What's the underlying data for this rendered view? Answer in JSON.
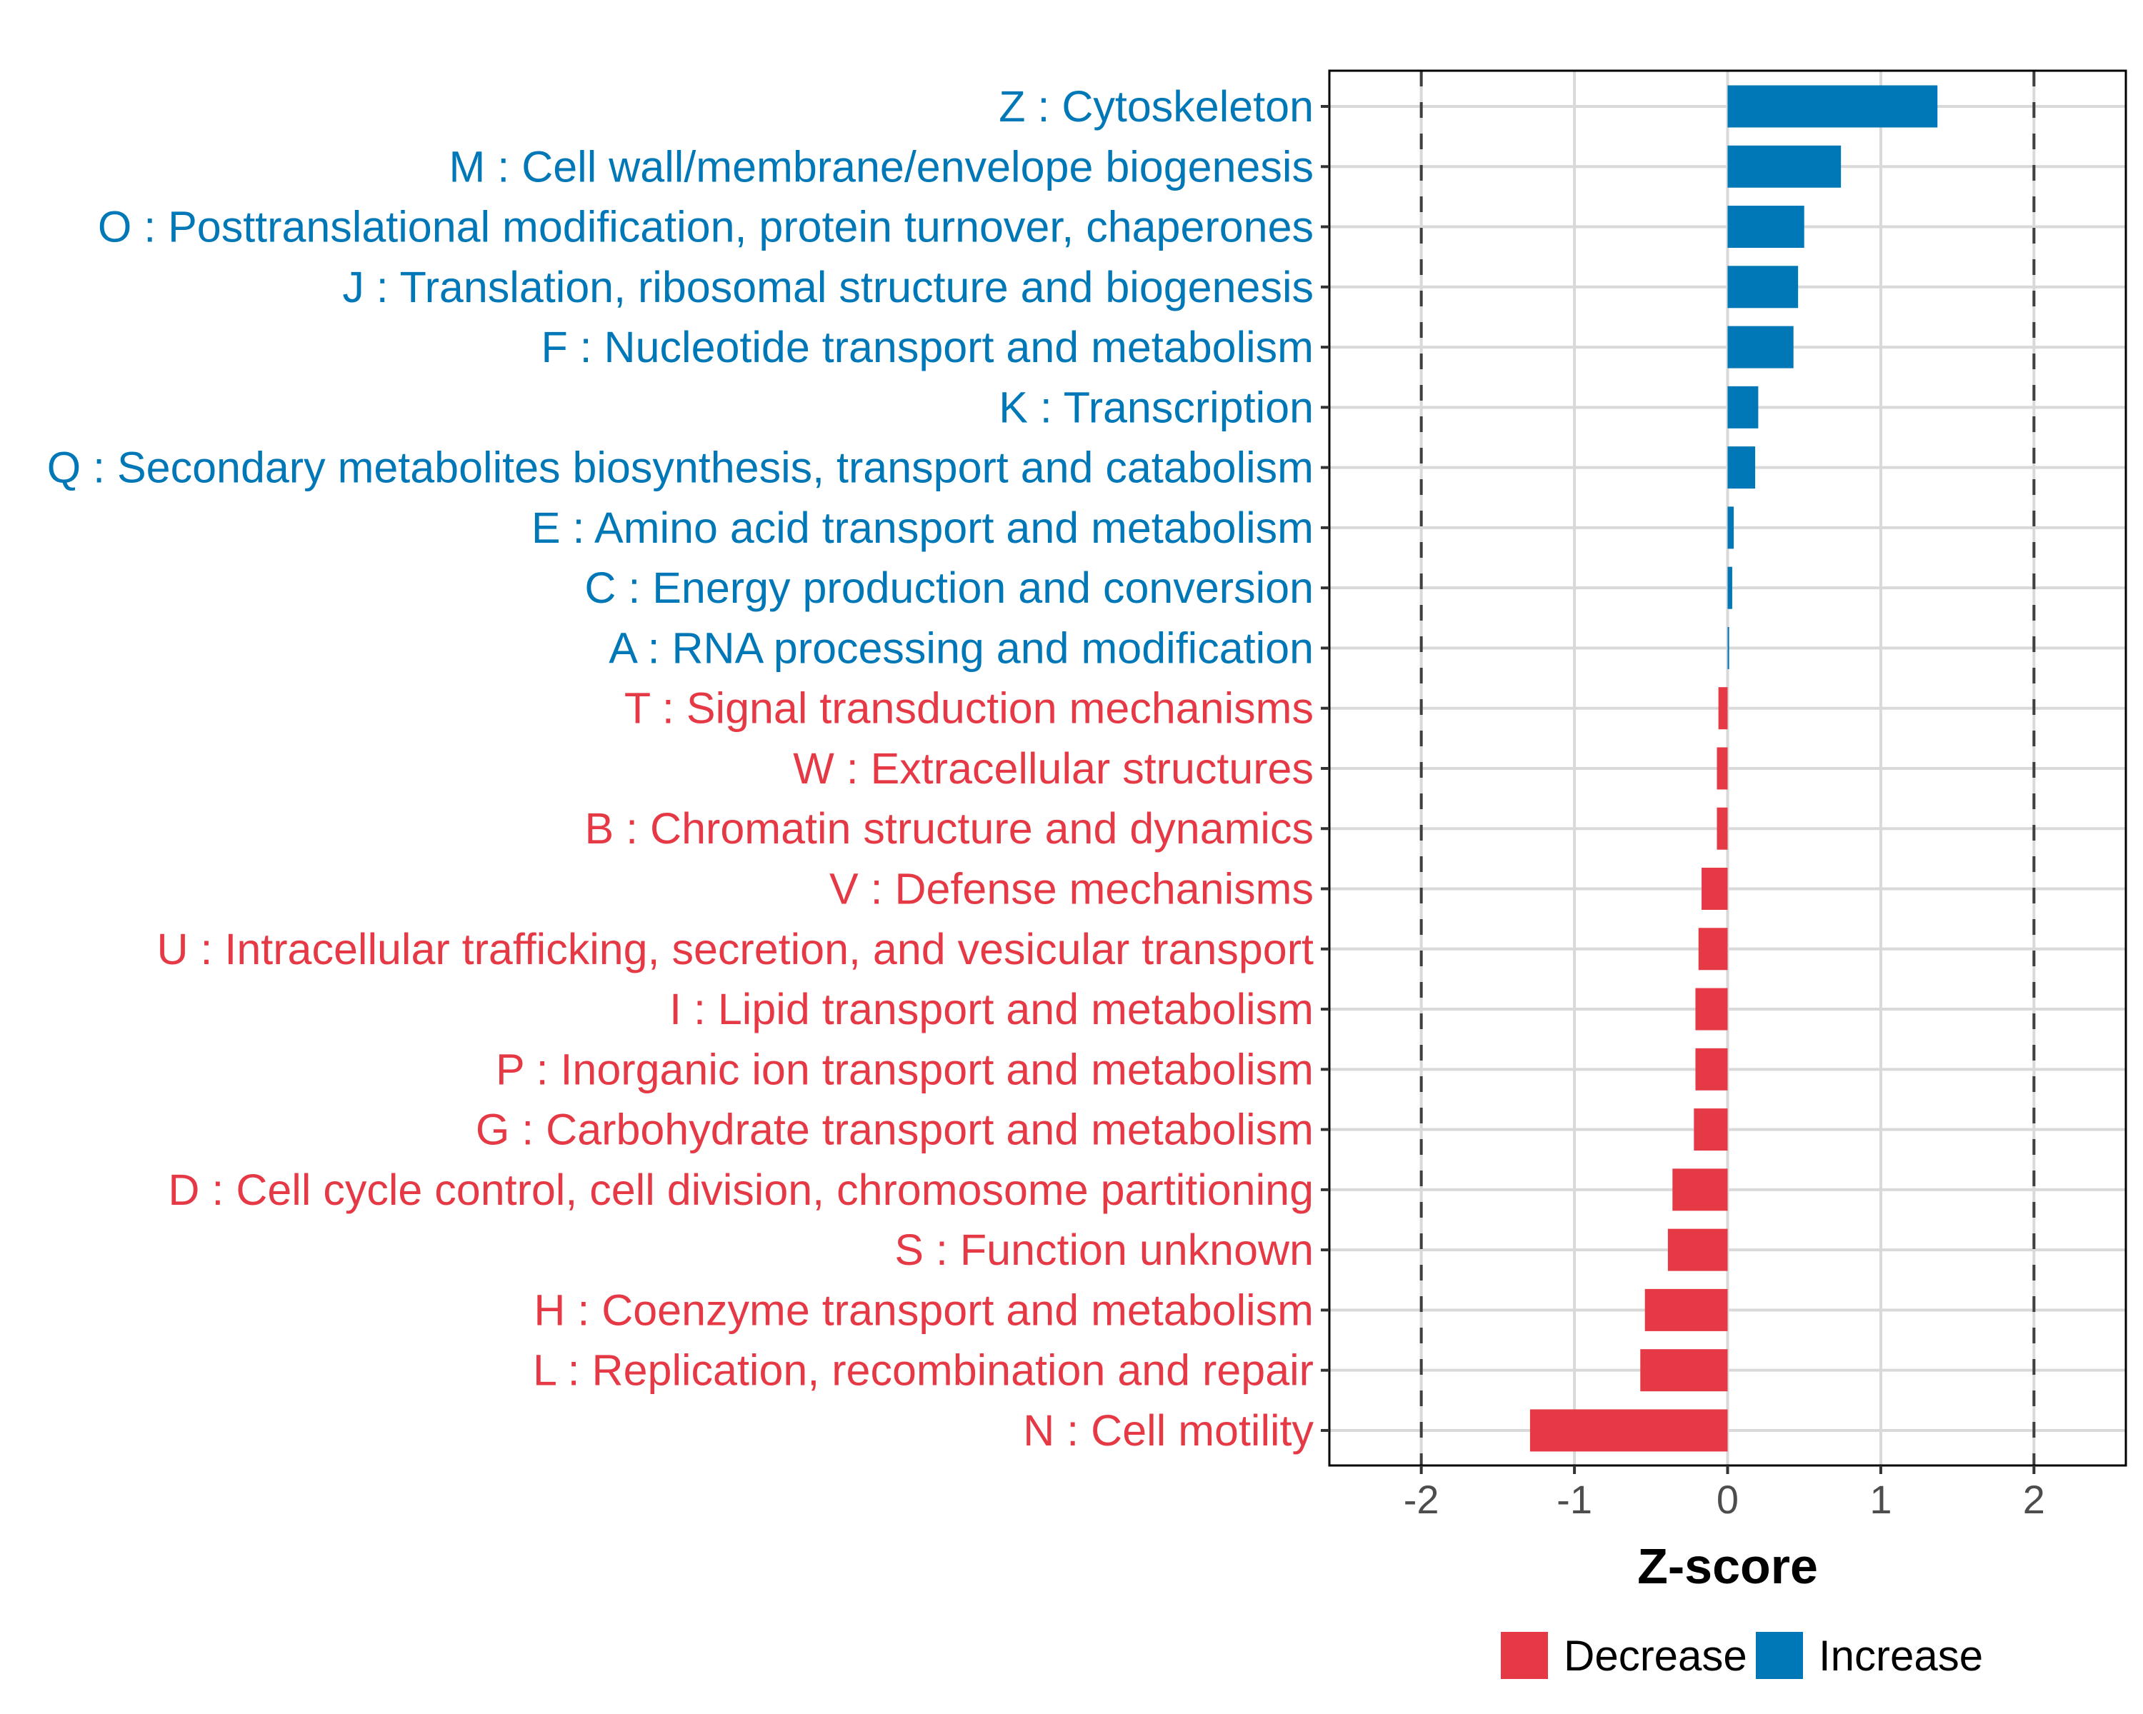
{
  "chart_data": {
    "type": "bar",
    "orientation": "horizontal",
    "title": "",
    "xlabel": "Z-score",
    "ylabel": "",
    "xlim": [
      -2.6,
      2.6
    ],
    "xticks": [
      -2,
      -1,
      0,
      1,
      2
    ],
    "xtick_labels": [
      "-2",
      "-1",
      "0",
      "1",
      "2"
    ],
    "reference_lines": [
      -2,
      2
    ],
    "reference_line_style": "dashed",
    "grid": true,
    "legend_position": "bottom",
    "legend": [
      {
        "key": "Decrease",
        "label": "Decrease",
        "color": "#E63946"
      },
      {
        "key": "Increase",
        "label": "Increase",
        "color": "#0077B6"
      }
    ],
    "categories": [
      "Z : Cytoskeleton",
      "M : Cell wall/membrane/envelope biogenesis",
      "O : Posttranslational modification, protein turnover, chaperones",
      "J : Translation, ribosomal structure and biogenesis",
      "F : Nucleotide transport and metabolism",
      "K : Transcription",
      "Q : Secondary metabolites biosynthesis, transport and catabolism",
      "E : Amino acid transport and metabolism",
      "C : Energy production and conversion",
      "A : RNA processing and modification",
      "T : Signal transduction mechanisms",
      "W : Extracellular structures",
      "B : Chromatin structure and dynamics",
      "V : Defense mechanisms",
      "U : Intracellular trafficking, secretion, and vesicular transport",
      "I : Lipid transport and metabolism",
      "P : Inorganic ion transport and metabolism",
      "G : Carbohydrate transport and metabolism",
      "D : Cell cycle control, cell division, chromosome partitioning",
      "S : Function unknown",
      "H : Coenzyme transport and metabolism",
      "L : Replication, recombination and repair",
      "N : Cell motility"
    ],
    "values": [
      1.37,
      0.74,
      0.5,
      0.46,
      0.43,
      0.2,
      0.18,
      0.04,
      0.03,
      0.01,
      -0.06,
      -0.07,
      -0.07,
      -0.17,
      -0.19,
      -0.21,
      -0.21,
      -0.22,
      -0.36,
      -0.39,
      -0.54,
      -0.57,
      -1.29
    ],
    "groups": [
      "Increase",
      "Increase",
      "Increase",
      "Increase",
      "Increase",
      "Increase",
      "Increase",
      "Increase",
      "Increase",
      "Increase",
      "Decrease",
      "Decrease",
      "Decrease",
      "Decrease",
      "Decrease",
      "Decrease",
      "Decrease",
      "Decrease",
      "Decrease",
      "Decrease",
      "Decrease",
      "Decrease",
      "Decrease"
    ]
  }
}
